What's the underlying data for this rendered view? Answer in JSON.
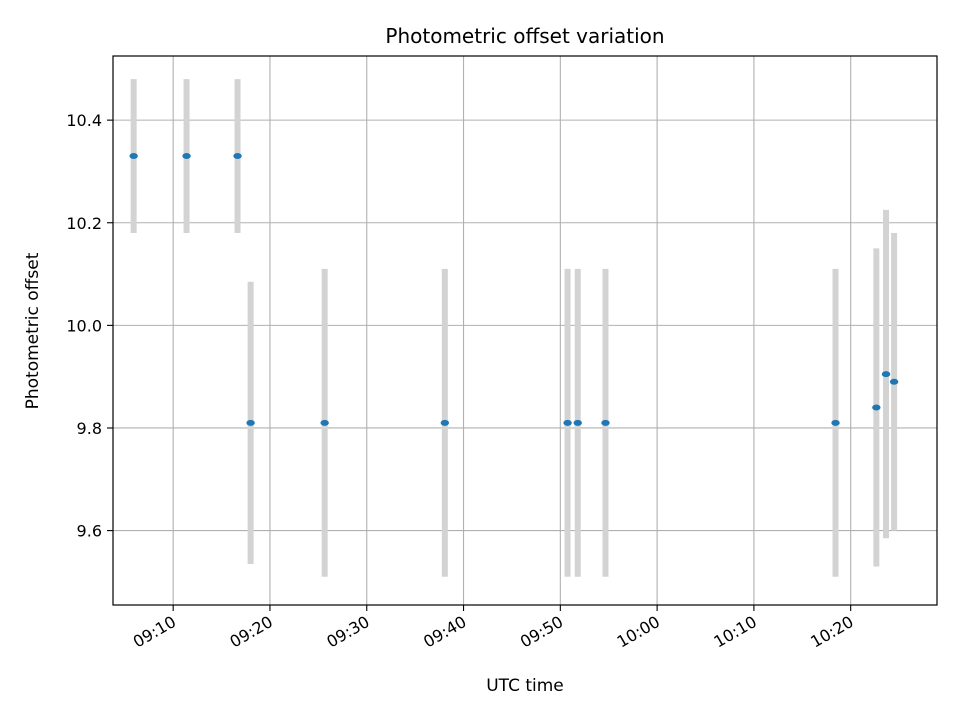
{
  "chart_data": {
    "type": "scatter",
    "title": "Photometric offset variation",
    "xlabel": "UTC time",
    "ylabel": "Photometric offset",
    "x_tick_labels": [
      "09:10",
      "09:20",
      "09:30",
      "09:40",
      "09:50",
      "10:00",
      "10:10",
      "10:20"
    ],
    "y_tick_labels": [
      "9.6",
      "9.8",
      "10.0",
      "10.2",
      "10.4"
    ],
    "x_ticks": [
      "09:10",
      "09:20",
      "09:30",
      "09:40",
      "09:50",
      "10:00",
      "10:10",
      "10:20"
    ],
    "y_ticks": [
      9.6,
      9.8,
      10.0,
      10.2,
      10.4
    ],
    "xlim": [
      "09:03:47",
      "10:28:55"
    ],
    "ylim": [
      9.455,
      10.525
    ],
    "grid": true,
    "point_color": "#1f77b4",
    "errorbar_color": "#d3d3d3",
    "points": [
      {
        "x": "09:05:55",
        "y": 10.33,
        "err": 0.15
      },
      {
        "x": "09:11:23",
        "y": 10.33,
        "err": 0.15
      },
      {
        "x": "09:16:39",
        "y": 10.33,
        "err": 0.15
      },
      {
        "x": "09:18:00",
        "y": 9.81,
        "err": 0.275
      },
      {
        "x": "09:25:39",
        "y": 9.81,
        "err": 0.3
      },
      {
        "x": "09:38:04",
        "y": 9.81,
        "err": 0.3
      },
      {
        "x": "09:50:45",
        "y": 9.81,
        "err": 0.3
      },
      {
        "x": "09:51:48",
        "y": 9.81,
        "err": 0.3
      },
      {
        "x": "09:54:40",
        "y": 9.81,
        "err": 0.3
      },
      {
        "x": "10:18:26",
        "y": 9.81,
        "err": 0.3
      },
      {
        "x": "10:22:39",
        "y": 9.84,
        "err": 0.31
      },
      {
        "x": "10:23:39",
        "y": 9.905,
        "err": 0.32
      },
      {
        "x": "10:24:29",
        "y": 9.89,
        "err": 0.29
      }
    ]
  }
}
